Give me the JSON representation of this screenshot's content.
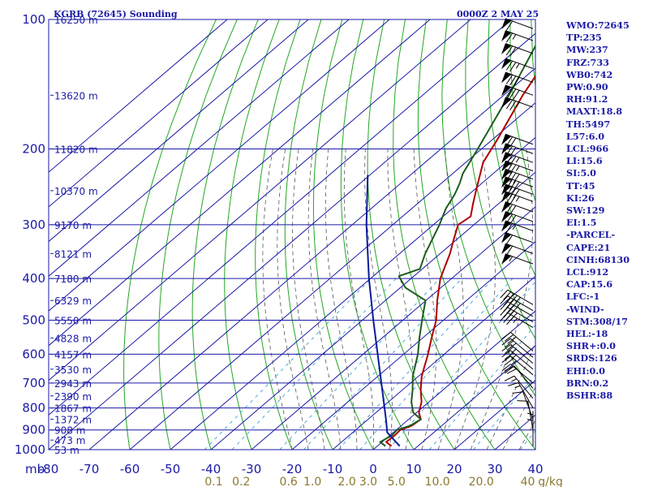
{
  "header": {
    "station_title": "KGRB (72645) Sounding",
    "time_title": "0000Z  2 MAY 25"
  },
  "colors": {
    "frame": "#1a1aa6",
    "dry_adiabat": "#22a822",
    "moist_adiabat": "#555555",
    "mixing_ratio": "#3aa0d8",
    "temperature": "#b00000",
    "dewpoint": "#1e5c1e",
    "parcel": "#0a1a9a",
    "mixing_label": "#8b7a2e"
  },
  "chart_data": {
    "type": "skew-t",
    "ylabel": "mb",
    "pressure_ticks": [
      100,
      200,
      300,
      400,
      500,
      600,
      700,
      800,
      900,
      1000
    ],
    "pressure_tick_labels": [
      "100",
      "200",
      "300",
      "400",
      "500",
      "600",
      "700",
      "800",
      "900",
      "1000"
    ],
    "temperature_ticks": [
      -80,
      -70,
      -60,
      -50,
      -40,
      -30,
      -20,
      -10,
      0,
      10,
      20,
      30,
      40
    ],
    "temperature_tick_labels": [
      "-80",
      "-70",
      "-60",
      "-50",
      "-40",
      "-30",
      "-20",
      "-10",
      "0",
      "10",
      "20",
      "30",
      "40"
    ],
    "mixing_ratio_labels": [
      "0.1",
      "0.2",
      "0.6",
      "1.0",
      "2.0",
      "3.0",
      "5.0",
      "10.0",
      "20.0",
      "40",
      "g/kg"
    ],
    "mixing_ratio_values": [
      0.1,
      0.2,
      0.6,
      1.0,
      2.0,
      3.0,
      5.0,
      10.0,
      20.0,
      40.0
    ],
    "plim": [
      100,
      1000
    ],
    "tlim": [
      -80,
      40
    ],
    "heights": [
      {
        "p": 100,
        "label": "16250 m"
      },
      {
        "p": 150,
        "label": "13620 m"
      },
      {
        "p": 200,
        "label": "11820 m"
      },
      {
        "p": 250,
        "label": "10370 m"
      },
      {
        "p": 300,
        "label": "9170 m"
      },
      {
        "p": 350,
        "label": "8121 m"
      },
      {
        "p": 400,
        "label": "7180 m"
      },
      {
        "p": 450,
        "label": "6329 m"
      },
      {
        "p": 500,
        "label": "5550 m"
      },
      {
        "p": 550,
        "label": "4828 m"
      },
      {
        "p": 600,
        "label": "4157 m"
      },
      {
        "p": 650,
        "label": "3530 m"
      },
      {
        "p": 700,
        "label": "2943 m"
      },
      {
        "p": 750,
        "label": "2390 m"
      },
      {
        "p": 800,
        "label": "1867 m"
      },
      {
        "p": 850,
        "label": "1372 m"
      },
      {
        "p": 900,
        "label": "908 m"
      },
      {
        "p": 950,
        "label": "473 m"
      },
      {
        "p": 1000,
        "label": "53 m"
      }
    ],
    "series": [
      {
        "key": "temperature",
        "points": [
          {
            "p": 981,
            "t": 3.5
          },
          {
            "p": 960,
            "t": 1.0
          },
          {
            "p": 925,
            "t": 1.2
          },
          {
            "p": 900,
            "t": 1.0
          },
          {
            "p": 880,
            "t": 2.6
          },
          {
            "p": 850,
            "t": 3.0
          },
          {
            "p": 820,
            "t": 0.6
          },
          {
            "p": 775,
            "t": -1.8
          },
          {
            "p": 725,
            "t": -5.6
          },
          {
            "p": 675,
            "t": -9.2
          },
          {
            "p": 600,
            "t": -14.0
          },
          {
            "p": 550,
            "t": -17.8
          },
          {
            "p": 500,
            "t": -21.8
          },
          {
            "p": 450,
            "t": -27.2
          },
          {
            "p": 400,
            "t": -32.8
          },
          {
            "p": 350,
            "t": -37.6
          },
          {
            "p": 325,
            "t": -40.7
          },
          {
            "p": 300,
            "t": -43.9
          },
          {
            "p": 287,
            "t": -43.2
          },
          {
            "p": 268,
            "t": -46.3
          },
          {
            "p": 250,
            "t": -49.3
          },
          {
            "p": 215,
            "t": -55.7
          },
          {
            "p": 190,
            "t": -58.8
          },
          {
            "p": 150,
            "t": -65.3
          },
          {
            "p": 100,
            "t": -74.7
          }
        ]
      },
      {
        "key": "dewpoint",
        "points": [
          {
            "p": 981,
            "t": 2.0
          },
          {
            "p": 960,
            "t": -0.5
          },
          {
            "p": 925,
            "t": 0.5
          },
          {
            "p": 900,
            "t": 0.2
          },
          {
            "p": 880,
            "t": 2.2
          },
          {
            "p": 850,
            "t": 3.0
          },
          {
            "p": 820,
            "t": -0.8
          },
          {
            "p": 775,
            "t": -4.3
          },
          {
            "p": 725,
            "t": -7.6
          },
          {
            "p": 675,
            "t": -11.4
          },
          {
            "p": 600,
            "t": -16.5
          },
          {
            "p": 550,
            "t": -20.8
          },
          {
            "p": 500,
            "t": -25.3
          },
          {
            "p": 450,
            "t": -30.1
          },
          {
            "p": 420,
            "t": -38.8
          },
          {
            "p": 395,
            "t": -43.7
          },
          {
            "p": 380,
            "t": -40.6
          },
          {
            "p": 350,
            "t": -43.7
          },
          {
            "p": 300,
            "t": -48.5
          },
          {
            "p": 275,
            "t": -51.6
          },
          {
            "p": 255,
            "t": -53.5
          },
          {
            "p": 240,
            "t": -55.5
          },
          {
            "p": 228,
            "t": -57.5
          },
          {
            "p": 200,
            "t": -60.9
          },
          {
            "p": 150,
            "t": -68.7
          },
          {
            "p": 100,
            "t": -80.5
          }
        ]
      },
      {
        "key": "parcel",
        "points": [
          {
            "p": 981,
            "t": 5.5
          },
          {
            "p": 912,
            "t": -1.5
          },
          {
            "p": 850,
            "t": -5.6
          },
          {
            "p": 700,
            "t": -17.2
          },
          {
            "p": 500,
            "t": -37.3
          },
          {
            "p": 400,
            "t": -50.4
          },
          {
            "p": 300,
            "t": -66.5
          },
          {
            "p": 250,
            "t": -76.1
          },
          {
            "p": 230,
            "t": -80.5
          }
        ]
      }
    ],
    "wind_barbs": [
      {
        "p": 105,
        "dir": 290,
        "kt": 60
      },
      {
        "p": 112,
        "dir": 290,
        "kt": 65
      },
      {
        "p": 120,
        "dir": 290,
        "kt": 70
      },
      {
        "p": 130,
        "dir": 290,
        "kt": 75
      },
      {
        "p": 140,
        "dir": 290,
        "kt": 80
      },
      {
        "p": 150,
        "dir": 290,
        "kt": 80
      },
      {
        "p": 160,
        "dir": 290,
        "kt": 75
      },
      {
        "p": 195,
        "dir": 290,
        "kt": 70
      },
      {
        "p": 205,
        "dir": 290,
        "kt": 70
      },
      {
        "p": 215,
        "dir": 290,
        "kt": 75
      },
      {
        "p": 225,
        "dir": 290,
        "kt": 75
      },
      {
        "p": 235,
        "dir": 290,
        "kt": 80
      },
      {
        "p": 245,
        "dir": 290,
        "kt": 80
      },
      {
        "p": 255,
        "dir": 290,
        "kt": 80
      },
      {
        "p": 265,
        "dir": 290,
        "kt": 75
      },
      {
        "p": 280,
        "dir": 290,
        "kt": 70
      },
      {
        "p": 295,
        "dir": 290,
        "kt": 70
      },
      {
        "p": 310,
        "dir": 290,
        "kt": 65
      },
      {
        "p": 330,
        "dir": 290,
        "kt": 60
      },
      {
        "p": 350,
        "dir": 290,
        "kt": 60
      },
      {
        "p": 370,
        "dir": 290,
        "kt": 55
      },
      {
        "p": 460,
        "dir": 300,
        "kt": 45
      },
      {
        "p": 475,
        "dir": 300,
        "kt": 45
      },
      {
        "p": 490,
        "dir": 300,
        "kt": 40
      },
      {
        "p": 505,
        "dir": 300,
        "kt": 40
      },
      {
        "p": 520,
        "dir": 300,
        "kt": 35
      },
      {
        "p": 590,
        "dir": 310,
        "kt": 30
      },
      {
        "p": 610,
        "dir": 310,
        "kt": 30
      },
      {
        "p": 630,
        "dir": 310,
        "kt": 25
      },
      {
        "p": 650,
        "dir": 310,
        "kt": 25
      },
      {
        "p": 670,
        "dir": 310,
        "kt": 25
      },
      {
        "p": 700,
        "dir": 310,
        "kt": 20
      },
      {
        "p": 720,
        "dir": 320,
        "kt": 20
      },
      {
        "p": 760,
        "dir": 320,
        "kt": 15
      },
      {
        "p": 800,
        "dir": 330,
        "kt": 15
      },
      {
        "p": 850,
        "dir": 340,
        "kt": 10
      },
      {
        "p": 900,
        "dir": 350,
        "kt": 10
      },
      {
        "p": 950,
        "dir": 0,
        "kt": 5
      },
      {
        "p": 981,
        "dir": 0,
        "kt": 5
      }
    ]
  },
  "indices": [
    "WMO:72645",
    "TP:235",
    "MW:237",
    "FRZ:733",
    "WB0:742",
    "PW:0.90",
    "RH:91.2",
    "MAXT:18.8",
    "TH:5497",
    "L57:6.0",
    "LCL:966",
    "LI:15.6",
    "SI:5.0",
    "TT:45",
    "KI:26",
    "SW:129",
    "EI:1.5",
    "-PARCEL-",
    "CAPE:21",
    "CINH:68130",
    "LCL:912",
    "CAP:15.6",
    "LFC:-1",
    "-WIND-",
    "STM:308/17",
    "HEL:-18",
    "SHR+:0.0",
    "SRDS:126",
    "EHI:0.0",
    "BRN:0.2",
    "BSHR:88"
  ]
}
